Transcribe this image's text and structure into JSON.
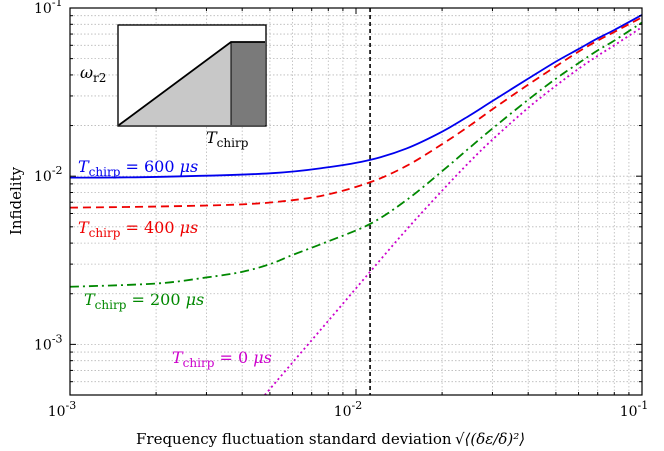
{
  "chart_data": {
    "type": "line",
    "xlabel": "Frequency fluctuation standard deviation",
    "xlabel_math": "√⟨(δε/δ)²⟩",
    "ylabel": "Infidelity",
    "x_scale": "log",
    "y_scale": "log",
    "xlim": [
      0.001,
      0.1
    ],
    "ylim": [
      0.0005,
      0.1
    ],
    "grid": true,
    "x_ticks": [
      {
        "value": 0.001,
        "base": "10",
        "exp": "-3"
      },
      {
        "value": 0.01,
        "base": "10",
        "exp": "-2"
      },
      {
        "value": 0.1,
        "base": "10",
        "exp": "-1"
      }
    ],
    "y_ticks": [
      {
        "value": 0.001,
        "base": "10",
        "exp": "-3"
      },
      {
        "value": 0.01,
        "base": "10",
        "exp": "-2"
      },
      {
        "value": 0.1,
        "base": "10",
        "exp": "-1"
      }
    ],
    "vline": {
      "x": 0.0112,
      "style": "dashed",
      "color": "#000000"
    },
    "series": [
      {
        "name": "T_chirp = 600 μs",
        "label_T": "T",
        "label_sub": "chirp",
        "label_rest": " = 600 ",
        "label_unit": "μs",
        "color": "#0000ee",
        "dash": "solid",
        "x": [
          0.001,
          0.002,
          0.005,
          0.008,
          0.0112,
          0.015,
          0.02,
          0.025,
          0.03,
          0.04,
          0.05,
          0.06,
          0.07,
          0.08,
          0.1
        ],
        "y": [
          0.0098,
          0.0099,
          0.0104,
          0.0113,
          0.0125,
          0.0146,
          0.0184,
          0.023,
          0.028,
          0.038,
          0.048,
          0.057,
          0.066,
          0.074,
          0.091
        ]
      },
      {
        "name": "T_chirp = 400 μs",
        "label_T": "T",
        "label_sub": "chirp",
        "label_rest": " = 400 ",
        "label_unit": "μs",
        "color": "#ee0000",
        "dash": "dashed",
        "x": [
          0.001,
          0.002,
          0.004,
          0.006,
          0.008,
          0.0112,
          0.015,
          0.02,
          0.025,
          0.03,
          0.04,
          0.05,
          0.06,
          0.07,
          0.08,
          0.1
        ],
        "y": [
          0.0065,
          0.0066,
          0.0068,
          0.0072,
          0.0078,
          0.0092,
          0.0115,
          0.0155,
          0.02,
          0.025,
          0.035,
          0.045,
          0.055,
          0.064,
          0.072,
          0.088
        ]
      },
      {
        "name": "T_chirp = 200 μs",
        "label_T": "T",
        "label_sub": "chirp",
        "label_rest": " = 200 ",
        "label_unit": "μs",
        "color": "#008800",
        "dash": "dashdot",
        "x": [
          0.001,
          0.002,
          0.003,
          0.004,
          0.005,
          0.006,
          0.008,
          0.0112,
          0.015,
          0.02,
          0.025,
          0.03,
          0.04,
          0.05,
          0.06,
          0.07,
          0.08,
          0.1
        ],
        "y": [
          0.0022,
          0.0023,
          0.0025,
          0.0027,
          0.003,
          0.0034,
          0.0041,
          0.0052,
          0.0072,
          0.0107,
          0.0148,
          0.0192,
          0.0285,
          0.038,
          0.047,
          0.056,
          0.064,
          0.082
        ]
      },
      {
        "name": "T_chirp = 0 μs",
        "label_T": "T",
        "label_sub": "chirp",
        "label_rest": " = 0 ",
        "label_unit": "μs",
        "color": "#cc00cc",
        "dash": "dotted",
        "x": [
          0.0048,
          0.006,
          0.008,
          0.0112,
          0.015,
          0.02,
          0.025,
          0.03,
          0.04,
          0.05,
          0.06,
          0.07,
          0.08,
          0.1
        ],
        "y": [
          0.0005,
          0.00078,
          0.00138,
          0.0027,
          0.0048,
          0.0082,
          0.0122,
          0.0165,
          0.0255,
          0.0345,
          0.0435,
          0.052,
          0.06,
          0.077
        ]
      }
    ],
    "inset": {
      "ylabel_base": "ω",
      "ylabel_sub": "r2",
      "xlabel_base": "T",
      "xlabel_sub": "chirp",
      "ramp_color": "#c8c8c8",
      "plateau_color": "#7a7a7a"
    }
  }
}
